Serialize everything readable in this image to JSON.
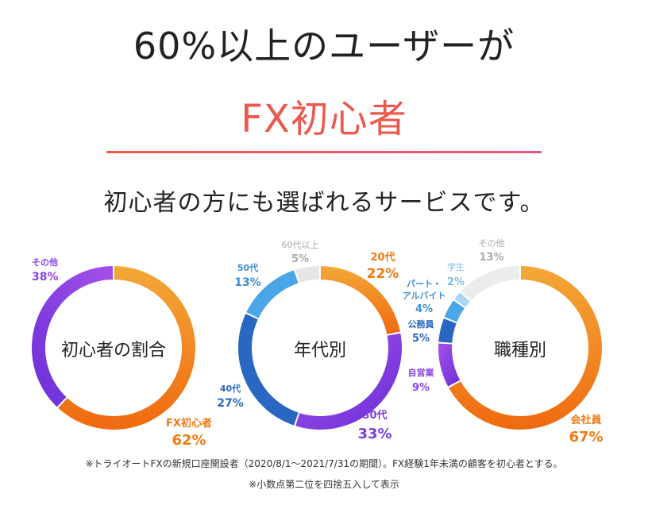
{
  "headline": {
    "line1": "60%以上のユーザーが",
    "line2": "FX初心者",
    "subtitle": "初心者の方にも選ばれるサービスです。"
  },
  "footnotes": {
    "note1": "※トライオートFXの新規口座開設者（2020/8/1～2021/7/31の期間）。FX経験1年未満の顧客を初心者とする。",
    "note2": "※小数点第二位を四捨五入して表示"
  },
  "colors": {
    "accent": "#ec5a4f",
    "orange": "#f07a14",
    "purple": "#7b3fe0",
    "blue": "#3b8fd8",
    "gray": "#e4e4e4"
  },
  "chart_data": [
    {
      "type": "pie",
      "title": "初心者の割合",
      "slices": [
        {
          "name": "FX初心者",
          "value": 62,
          "label": "62%",
          "color": "orange"
        },
        {
          "name": "その他",
          "value": 38,
          "label": "38%",
          "color": "purple"
        }
      ]
    },
    {
      "type": "pie",
      "title": "年代別",
      "slices": [
        {
          "name": "20代",
          "value": 22,
          "label": "22%",
          "color": "orange"
        },
        {
          "name": "30代",
          "value": 33,
          "label": "33%",
          "color": "purple"
        },
        {
          "name": "40代",
          "value": 27,
          "label": "27%",
          "color": "darkblue"
        },
        {
          "name": "50代",
          "value": 13,
          "label": "13%",
          "color": "blue"
        },
        {
          "name": "60代以上",
          "value": 5,
          "label": "5%",
          "color": "gray"
        }
      ]
    },
    {
      "type": "pie",
      "title": "職種別",
      "slices": [
        {
          "name": "会社員",
          "value": 67,
          "label": "67%",
          "color": "orange"
        },
        {
          "name": "自営業",
          "value": 9,
          "label": "9%",
          "color": "purple"
        },
        {
          "name": "公務員",
          "value": 5,
          "label": "5%",
          "color": "darkblue"
        },
        {
          "name": "パート・アルバイト",
          "value": 4,
          "label": "4%",
          "color": "blue"
        },
        {
          "name": "学生",
          "value": 2,
          "label": "2%",
          "color": "lightblue"
        },
        {
          "name": "その他",
          "value": 13,
          "label": "13%",
          "color": "gray"
        }
      ]
    }
  ]
}
